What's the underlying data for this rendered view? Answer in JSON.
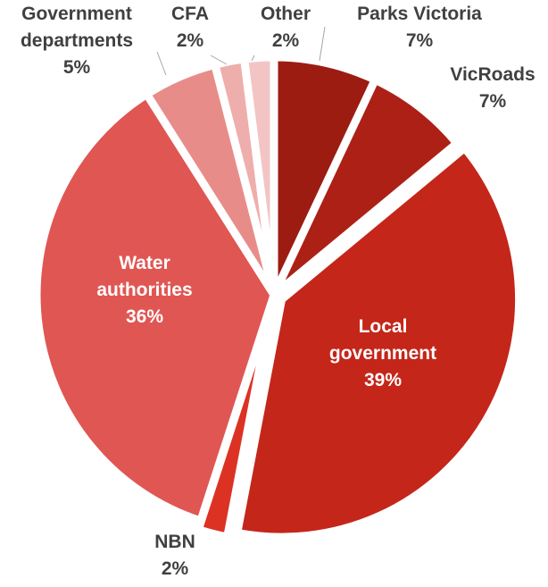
{
  "chart_data": {
    "type": "pie",
    "title": "",
    "slices": [
      {
        "label": "Parks Victoria",
        "value": 7,
        "value_label": "7%",
        "color": "#9c1c12"
      },
      {
        "label": "VicRoads",
        "value": 7,
        "value_label": "7%",
        "color": "#ad2016"
      },
      {
        "label": "Local government",
        "value": 39,
        "value_label": "39%",
        "color": "#c4261a"
      },
      {
        "label": "NBN",
        "value": 2,
        "value_label": "2%",
        "color": "#dc3224"
      },
      {
        "label": "Water authorities",
        "value": 36,
        "value_label": "36%",
        "color": "#e05653"
      },
      {
        "label": "Government departments",
        "value": 5,
        "value_label": "5%",
        "color": "#e88c8a"
      },
      {
        "label": "CFA",
        "value": 2,
        "value_label": "2%",
        "color": "#eeaeac"
      },
      {
        "label": "Other",
        "value": 2,
        "value_label": "2%",
        "color": "#f2c5c4"
      }
    ],
    "label_lines": {
      "Parks Victoria": [
        "Parks Victoria",
        "7%"
      ],
      "VicRoads": [
        "VicRoads",
        "7%"
      ],
      "Local government": [
        "Local",
        "government",
        "39%"
      ],
      "NBN": [
        "NBN",
        "2%"
      ],
      "Water authorities": [
        "Water",
        "authorities",
        "36%"
      ],
      "Government departments": [
        "Government",
        "departments",
        "5%"
      ],
      "CFA": [
        "CFA",
        "2%"
      ],
      "Other": [
        "Other",
        "2%"
      ]
    },
    "legend": "none"
  }
}
